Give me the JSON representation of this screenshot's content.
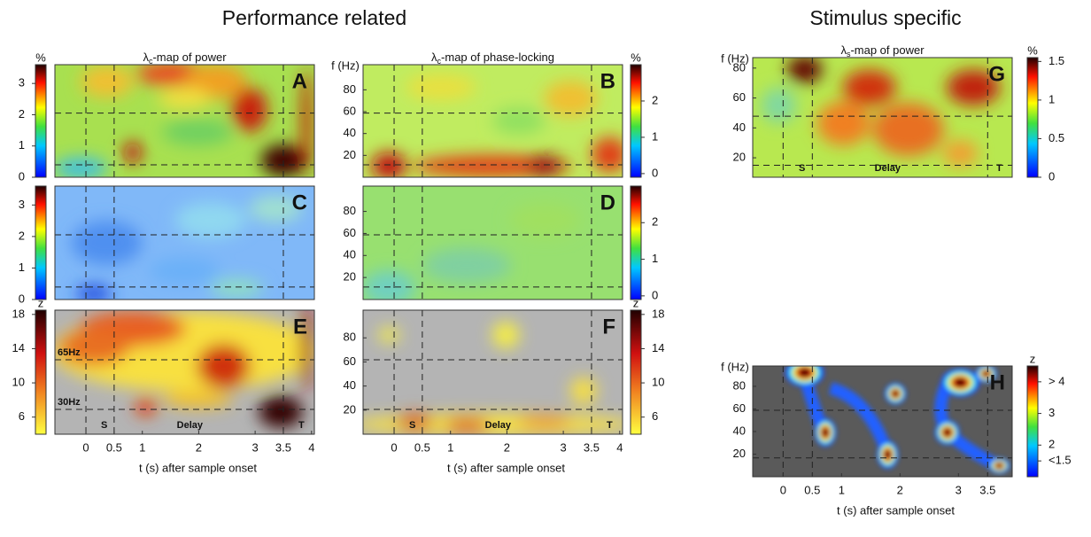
{
  "titles": [
    "Performance related",
    "Stimulus specific"
  ],
  "panels": [
    {
      "letter": "A",
      "title": {
        "symbol": "λ",
        "sub": "c",
        "text": "-map of power"
      },
      "colorbar": {
        "unit": "%",
        "lim": [
          0,
          3.6
        ],
        "ticks": [
          0,
          1,
          2,
          3
        ]
      }
    },
    {
      "letter": "B",
      "title": {
        "symbol": "λ",
        "sub": "c",
        "text": "-map of phase-locking"
      },
      "freq": {
        "label": "f (Hz)",
        "lim": [
          0,
          103
        ],
        "ticks": [
          20,
          40,
          60,
          80
        ]
      },
      "colorbar": {
        "unit": "%",
        "lim": [
          -0.1,
          3
        ],
        "ticks": [
          0,
          1,
          2
        ]
      }
    },
    {
      "letter": "C",
      "colorbar": {
        "lim": [
          0,
          3.6
        ],
        "ticks": [
          0,
          1,
          2,
          3
        ]
      }
    },
    {
      "letter": "D",
      "freq": {
        "lim": [
          0,
          103
        ],
        "ticks": [
          20,
          40,
          60,
          80
        ]
      },
      "colorbar": {
        "lim": [
          -0.1,
          3
        ],
        "ticks": [
          0,
          1,
          2
        ]
      }
    },
    {
      "letter": "E",
      "band_labels": [
        "65Hz",
        "30Hz"
      ],
      "markers": [
        "S",
        "Delay",
        "T"
      ],
      "time": {
        "label": "t (s) after sample onset",
        "lim": [
          -0.55,
          4.05
        ],
        "ticks": [
          0,
          0.5,
          1,
          2,
          3,
          3.5,
          4
        ]
      },
      "colorbar": {
        "unit": "z",
        "lim": [
          4,
          18.5
        ],
        "ticks": [
          6,
          10,
          14,
          18
        ]
      }
    },
    {
      "letter": "F",
      "markers": [
        "S",
        "Delay",
        "T"
      ],
      "freq": {
        "lim": [
          0,
          103
        ],
        "ticks": [
          20,
          40,
          60,
          80
        ]
      },
      "time": {
        "label": "t (s) after sample onset",
        "lim": [
          -0.55,
          4.05
        ],
        "ticks": [
          0,
          0.5,
          1,
          2,
          3,
          3.5,
          4
        ]
      },
      "colorbar": {
        "unit": "z",
        "lim": [
          4,
          18.5
        ],
        "ticks": [
          6,
          10,
          14,
          18
        ]
      }
    },
    {
      "letter": "G",
      "title": {
        "symbol": "λ",
        "sub": "s",
        "text": "-map of power"
      },
      "markers": [
        "S",
        "Delay",
        "T"
      ],
      "freq": {
        "label": "f (Hz)",
        "lim": [
          7,
          87
        ],
        "ticks": [
          20,
          40,
          60,
          80
        ]
      },
      "colorbar": {
        "unit": "%",
        "lim": [
          0,
          1.55
        ],
        "ticks": [
          0,
          0.5,
          1,
          1.5
        ]
      }
    },
    {
      "letter": "H",
      "freq": {
        "label": "f (Hz)",
        "lim": [
          0,
          98
        ],
        "ticks": [
          20,
          40,
          60,
          80
        ]
      },
      "time": {
        "label": "t (s) after sample onset",
        "lim": [
          -0.52,
          3.92
        ],
        "ticks": [
          0,
          0.5,
          1,
          2,
          3,
          3.5
        ]
      },
      "colorbar": {
        "unit": "z",
        "lim": [
          1,
          4.5
        ],
        "ticks": [
          {
            "value": 1.5,
            "label": "<1.5"
          },
          2,
          3,
          {
            "value": 4,
            "label": "> 4"
          }
        ]
      }
    }
  ]
}
